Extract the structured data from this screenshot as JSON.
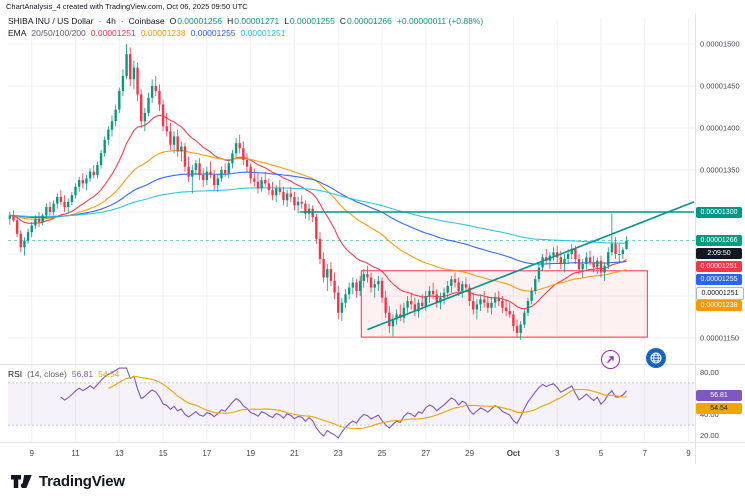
{
  "title_bar": "ChartAnalysis_4 created with TradingView.com, Oct 06, 2025 09:50 UTC",
  "legend": {
    "symbol": "SHIBA INU / US Dollar",
    "sep": "·",
    "interval": "4h",
    "exchange": "Coinbase",
    "o_label": "O",
    "o": "0.00001256",
    "h_label": "H",
    "h": "0.00001271",
    "l_label": "L",
    "l": "0.00001255",
    "c_label": "C",
    "c": "0.00001266",
    "change": "+0.00000011 (+0.88%)",
    "ema_title": "EMA",
    "ema_params": "20/50/100/200",
    "ema_values": [
      "0.00001251",
      "0.00001238",
      "0.00001255",
      "0.00001251"
    ]
  },
  "rsi_legend": {
    "title": "RSI",
    "params": "(14, close)",
    "value": "56.81",
    "ma_value": "54.54"
  },
  "rsi_labels": [
    {
      "text": "56.81",
      "bg": "#7e57c2",
      "fg": "#ffffff",
      "y": 377,
      "name": "rsi-value-label"
    },
    {
      "text": "54.54",
      "bg": "#f0a500",
      "fg": "#131722",
      "y": 390,
      "name": "rsi-ma-value-label"
    }
  ],
  "price_axis": {
    "line_label": {
      "text": "0.00001300",
      "bg": "#009688",
      "fg": "#ffffff",
      "y": 194,
      "name": "resistance-price-label"
    },
    "stack": [
      {
        "text": "0.00001266",
        "bg": "#089981",
        "fg": "#ffffff",
        "y": 222,
        "name": "last-price-label"
      },
      {
        "text": "2:09:50",
        "bg": "#131722",
        "fg": "#ffffff",
        "y": 235,
        "name": "countdown-label"
      },
      {
        "text": "0.00001251",
        "bg": "#f23645",
        "fg": "#ffffff",
        "y": 248,
        "name": "ema20-price-label"
      },
      {
        "text": "0.00001255",
        "bg": "#2962ff",
        "fg": "#ffffff",
        "y": 261,
        "name": "ema100-price-label"
      },
      {
        "text": "0.00001251",
        "bg": "#ffffff",
        "fg": "#131722",
        "y": 274,
        "border": "#b2b5be",
        "name": "ema200-price-label"
      },
      {
        "text": "0.00001238",
        "bg": "#ff9800",
        "fg": "#ffffff",
        "y": 287,
        "name": "ema50-price-label"
      }
    ]
  },
  "footer": {
    "brand": "TradingView"
  },
  "chart_data": {
    "type": "candlestick",
    "title": "SHIBA INU / US Dollar, 4h, Coinbase",
    "note": "prices stored as integers, real USD value = n * 0.00000001",
    "price_scale": 1e-08,
    "ylim": [
      1119,
      1531
    ],
    "gridline_prices": [
      1150,
      1200,
      1250,
      1300,
      1350,
      1400,
      1450,
      1500
    ],
    "up_color": "#089981",
    "down_color": "#f23645",
    "time_axis": {
      "labels": [
        "9",
        "11",
        "13",
        "15",
        "17",
        "19",
        "21",
        "23",
        "25",
        "27",
        "29",
        "Oct",
        "3",
        "5",
        "7",
        "9"
      ],
      "first_slot": 6,
      "slot_step": 12,
      "total_slots": 188
    },
    "candles": [
      [
        1292,
        1300,
        1285,
        1296
      ],
      [
        1296,
        1302,
        1288,
        1290
      ],
      [
        1290,
        1294,
        1270,
        1274
      ],
      [
        1274,
        1278,
        1252,
        1258
      ],
      [
        1258,
        1270,
        1248,
        1266
      ],
      [
        1266,
        1280,
        1262,
        1276
      ],
      [
        1276,
        1288,
        1270,
        1284
      ],
      [
        1284,
        1296,
        1280,
        1292
      ],
      [
        1292,
        1300,
        1282,
        1288
      ],
      [
        1288,
        1298,
        1284,
        1296
      ],
      [
        1296,
        1310,
        1292,
        1306
      ],
      [
        1306,
        1312,
        1296,
        1300
      ],
      [
        1300,
        1314,
        1296,
        1310
      ],
      [
        1310,
        1322,
        1304,
        1318
      ],
      [
        1318,
        1326,
        1308,
        1312
      ],
      [
        1312,
        1320,
        1300,
        1306
      ],
      [
        1306,
        1316,
        1298,
        1312
      ],
      [
        1312,
        1324,
        1308,
        1320
      ],
      [
        1320,
        1334,
        1316,
        1330
      ],
      [
        1330,
        1342,
        1324,
        1338
      ],
      [
        1338,
        1346,
        1328,
        1334
      ],
      [
        1334,
        1344,
        1326,
        1340
      ],
      [
        1340,
        1352,
        1336,
        1348
      ],
      [
        1348,
        1356,
        1340,
        1344
      ],
      [
        1344,
        1360,
        1340,
        1356
      ],
      [
        1356,
        1374,
        1352,
        1370
      ],
      [
        1370,
        1390,
        1366,
        1386
      ],
      [
        1386,
        1402,
        1380,
        1398
      ],
      [
        1398,
        1415,
        1390,
        1408
      ],
      [
        1408,
        1428,
        1402,
        1422
      ],
      [
        1422,
        1448,
        1418,
        1444
      ],
      [
        1444,
        1470,
        1438,
        1462
      ],
      [
        1462,
        1500,
        1458,
        1488
      ],
      [
        1488,
        1496,
        1450,
        1458
      ],
      [
        1458,
        1480,
        1446,
        1472
      ],
      [
        1472,
        1478,
        1432,
        1440
      ],
      [
        1440,
        1446,
        1400,
        1408
      ],
      [
        1408,
        1424,
        1396,
        1418
      ],
      [
        1418,
        1442,
        1414,
        1436
      ],
      [
        1436,
        1458,
        1430,
        1450
      ],
      [
        1450,
        1462,
        1438,
        1444
      ],
      [
        1444,
        1452,
        1420,
        1428
      ],
      [
        1428,
        1434,
        1396,
        1402
      ],
      [
        1402,
        1418,
        1390,
        1396
      ],
      [
        1396,
        1406,
        1374,
        1380
      ],
      [
        1380,
        1396,
        1370,
        1390
      ],
      [
        1390,
        1398,
        1366,
        1372
      ],
      [
        1372,
        1384,
        1360,
        1378
      ],
      [
        1378,
        1382,
        1348,
        1354
      ],
      [
        1354,
        1366,
        1336,
        1342
      ],
      [
        1342,
        1356,
        1322,
        1350
      ],
      [
        1350,
        1362,
        1344,
        1358
      ],
      [
        1358,
        1364,
        1338,
        1344
      ],
      [
        1344,
        1352,
        1330,
        1338
      ],
      [
        1338,
        1354,
        1332,
        1348
      ],
      [
        1348,
        1360,
        1340,
        1344
      ],
      [
        1344,
        1350,
        1326,
        1332
      ],
      [
        1332,
        1344,
        1324,
        1340
      ],
      [
        1340,
        1354,
        1336,
        1350
      ],
      [
        1350,
        1358,
        1342,
        1346
      ],
      [
        1346,
        1362,
        1340,
        1358
      ],
      [
        1358,
        1374,
        1352,
        1370
      ],
      [
        1370,
        1388,
        1364,
        1382
      ],
      [
        1382,
        1392,
        1370,
        1376
      ],
      [
        1376,
        1384,
        1356,
        1362
      ],
      [
        1362,
        1370,
        1348,
        1354
      ],
      [
        1354,
        1358,
        1334,
        1340
      ],
      [
        1340,
        1352,
        1330,
        1336
      ],
      [
        1336,
        1346,
        1322,
        1328
      ],
      [
        1328,
        1342,
        1324,
        1338
      ],
      [
        1338,
        1348,
        1330,
        1334
      ],
      [
        1334,
        1340,
        1320,
        1326
      ],
      [
        1326,
        1336,
        1314,
        1320
      ],
      [
        1320,
        1332,
        1312,
        1328
      ],
      [
        1328,
        1338,
        1320,
        1324
      ],
      [
        1324,
        1330,
        1308,
        1314
      ],
      [
        1314,
        1326,
        1306,
        1322
      ],
      [
        1322,
        1330,
        1312,
        1318
      ],
      [
        1318,
        1324,
        1302,
        1308
      ],
      [
        1308,
        1318,
        1298,
        1312
      ],
      [
        1312,
        1320,
        1304,
        1310
      ],
      [
        1310,
        1314,
        1292,
        1298
      ],
      [
        1298,
        1310,
        1290,
        1304
      ],
      [
        1304,
        1308,
        1288,
        1294
      ],
      [
        1294,
        1298,
        1262,
        1268
      ],
      [
        1268,
        1276,
        1238,
        1244
      ],
      [
        1244,
        1252,
        1216,
        1222
      ],
      [
        1222,
        1238,
        1206,
        1232
      ],
      [
        1232,
        1240,
        1212,
        1218
      ],
      [
        1218,
        1228,
        1196,
        1204
      ],
      [
        1204,
        1212,
        1172,
        1180
      ],
      [
        1180,
        1198,
        1170,
        1192
      ],
      [
        1192,
        1208,
        1186,
        1202
      ],
      [
        1202,
        1216,
        1196,
        1210
      ],
      [
        1210,
        1222,
        1202,
        1216
      ],
      [
        1216,
        1220,
        1198,
        1206
      ],
      [
        1206,
        1224,
        1200,
        1218
      ],
      [
        1218,
        1232,
        1210,
        1226
      ],
      [
        1226,
        1236,
        1216,
        1222
      ],
      [
        1222,
        1228,
        1204,
        1210
      ],
      [
        1210,
        1220,
        1198,
        1214
      ],
      [
        1214,
        1224,
        1206,
        1218
      ],
      [
        1218,
        1222,
        1192,
        1198
      ],
      [
        1198,
        1206,
        1174,
        1180
      ],
      [
        1180,
        1188,
        1156,
        1164
      ],
      [
        1164,
        1178,
        1152,
        1172
      ],
      [
        1172,
        1184,
        1166,
        1178
      ],
      [
        1178,
        1190,
        1170,
        1174
      ],
      [
        1174,
        1192,
        1168,
        1186
      ],
      [
        1186,
        1200,
        1180,
        1194
      ],
      [
        1194,
        1204,
        1184,
        1190
      ],
      [
        1190,
        1198,
        1176,
        1182
      ],
      [
        1182,
        1196,
        1174,
        1192
      ],
      [
        1192,
        1202,
        1184,
        1188
      ],
      [
        1188,
        1206,
        1182,
        1200
      ],
      [
        1200,
        1212,
        1192,
        1206
      ],
      [
        1206,
        1216,
        1196,
        1202
      ],
      [
        1202,
        1208,
        1186,
        1192
      ],
      [
        1192,
        1204,
        1184,
        1198
      ],
      [
        1198,
        1210,
        1190,
        1204
      ],
      [
        1204,
        1218,
        1198,
        1212
      ],
      [
        1212,
        1224,
        1204,
        1220
      ],
      [
        1220,
        1228,
        1210,
        1216
      ],
      [
        1216,
        1222,
        1200,
        1206
      ],
      [
        1206,
        1218,
        1198,
        1214
      ],
      [
        1214,
        1222,
        1206,
        1210
      ],
      [
        1210,
        1214,
        1188,
        1194
      ],
      [
        1194,
        1204,
        1178,
        1184
      ],
      [
        1184,
        1196,
        1172,
        1190
      ],
      [
        1190,
        1202,
        1182,
        1196
      ],
      [
        1196,
        1206,
        1186,
        1192
      ],
      [
        1192,
        1200,
        1180,
        1186
      ],
      [
        1186,
        1198,
        1178,
        1192
      ],
      [
        1192,
        1204,
        1186,
        1198
      ],
      [
        1198,
        1206,
        1188,
        1194
      ],
      [
        1194,
        1200,
        1180,
        1186
      ],
      [
        1186,
        1196,
        1176,
        1182
      ],
      [
        1182,
        1192,
        1174,
        1178
      ],
      [
        1178,
        1182,
        1158,
        1164
      ],
      [
        1164,
        1172,
        1150,
        1156
      ],
      [
        1156,
        1170,
        1148,
        1166
      ],
      [
        1166,
        1184,
        1162,
        1180
      ],
      [
        1180,
        1198,
        1176,
        1194
      ],
      [
        1194,
        1210,
        1190,
        1206
      ],
      [
        1206,
        1224,
        1202,
        1220
      ],
      [
        1220,
        1238,
        1216,
        1234
      ],
      [
        1234,
        1250,
        1230,
        1246
      ],
      [
        1246,
        1256,
        1238,
        1242
      ],
      [
        1242,
        1252,
        1232,
        1248
      ],
      [
        1248,
        1258,
        1242,
        1252
      ],
      [
        1252,
        1260,
        1240,
        1246
      ],
      [
        1246,
        1254,
        1232,
        1238
      ],
      [
        1238,
        1250,
        1228,
        1244
      ],
      [
        1244,
        1256,
        1238,
        1250
      ],
      [
        1250,
        1262,
        1244,
        1256
      ],
      [
        1256,
        1260,
        1238,
        1244
      ],
      [
        1244,
        1250,
        1226,
        1232
      ],
      [
        1232,
        1244,
        1222,
        1238
      ],
      [
        1238,
        1252,
        1232,
        1246
      ],
      [
        1246,
        1254,
        1236,
        1240
      ],
      [
        1240,
        1248,
        1228,
        1234
      ],
      [
        1234,
        1246,
        1226,
        1242
      ],
      [
        1242,
        1248,
        1222,
        1228
      ],
      [
        1228,
        1240,
        1218,
        1236
      ],
      [
        1236,
        1258,
        1232,
        1252
      ],
      [
        1252,
        1298,
        1248,
        1262
      ],
      [
        1262,
        1270,
        1244,
        1250
      ],
      [
        1250,
        1262,
        1240,
        1250
      ],
      [
        1250,
        1258,
        1244,
        1255
      ],
      [
        1256,
        1271,
        1255,
        1266
      ]
    ],
    "emas": [
      {
        "period": 20,
        "color": "#f23645",
        "last": "0.00001251"
      },
      {
        "period": 50,
        "color": "#ff9800",
        "last": "0.00001238"
      },
      {
        "period": 100,
        "color": "#2962ff",
        "last": "0.00001255"
      },
      {
        "period": 200,
        "color": "#26c6da",
        "last": "0.00001251"
      }
    ],
    "drawings": {
      "resistance": {
        "price": 1300,
        "x_start_frac": 0.425,
        "color": "#009688",
        "label": "0.00001300"
      },
      "ascending_trendline": {
        "x1_frac": 0.524,
        "price1": 1160,
        "x2_frac": 1.0,
        "price2": 1312,
        "color": "#009688"
      },
      "support_zone": {
        "x1_frac": 0.515,
        "x2_frac": 0.932,
        "price_top": 1230,
        "price_bottom": 1151,
        "stroke": "#f23645",
        "fill": "rgba(242,54,69,0.07)"
      }
    },
    "rsi": {
      "period": 14,
      "color": "#7e57c2",
      "ma_period": 14,
      "ma_color": "#f0a500",
      "upper": 70,
      "lower": 30,
      "band_fill": "rgba(126,87,194,0.08)",
      "ylim": [
        15,
        85
      ],
      "last": 56.81,
      "ma_last": 54.54,
      "axis_labels": [
        {
          "v": 80,
          "t": "80.00"
        },
        {
          "v": 40,
          "t": "40.00"
        },
        {
          "v": 20,
          "t": "20.00"
        }
      ]
    }
  }
}
